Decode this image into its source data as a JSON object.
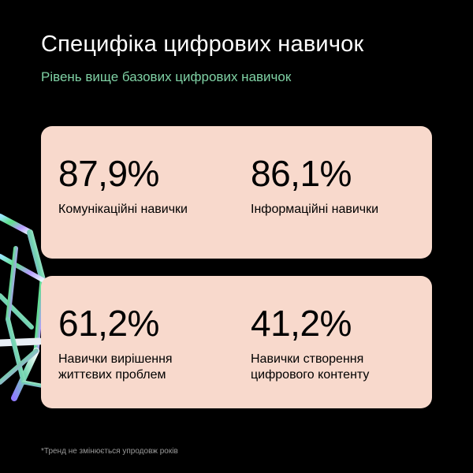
{
  "header": {
    "title": "Специфіка цифрових навичок",
    "subtitle": "Рівень вище базових цифрових навичок"
  },
  "stats": [
    {
      "value": "87,9%",
      "label": "Комунікаційні навички"
    },
    {
      "value": "86,1%",
      "label": "Інформаційні навички"
    },
    {
      "value": "61,2%",
      "label": "Навички вирішення життєвих проблем"
    },
    {
      "value": "41,2%",
      "label": "Навички створення цифрового контенту"
    }
  ],
  "footnote": "*Тренд не змінюється упродовж років",
  "colors": {
    "background": "#000000",
    "card": "#f8d9cc",
    "subtitle": "#7fd1a4",
    "title": "#ffffff",
    "footnote": "#9a9a9a"
  },
  "decoration": {
    "icon": "iridescent-wireframe-sphere-icon"
  }
}
